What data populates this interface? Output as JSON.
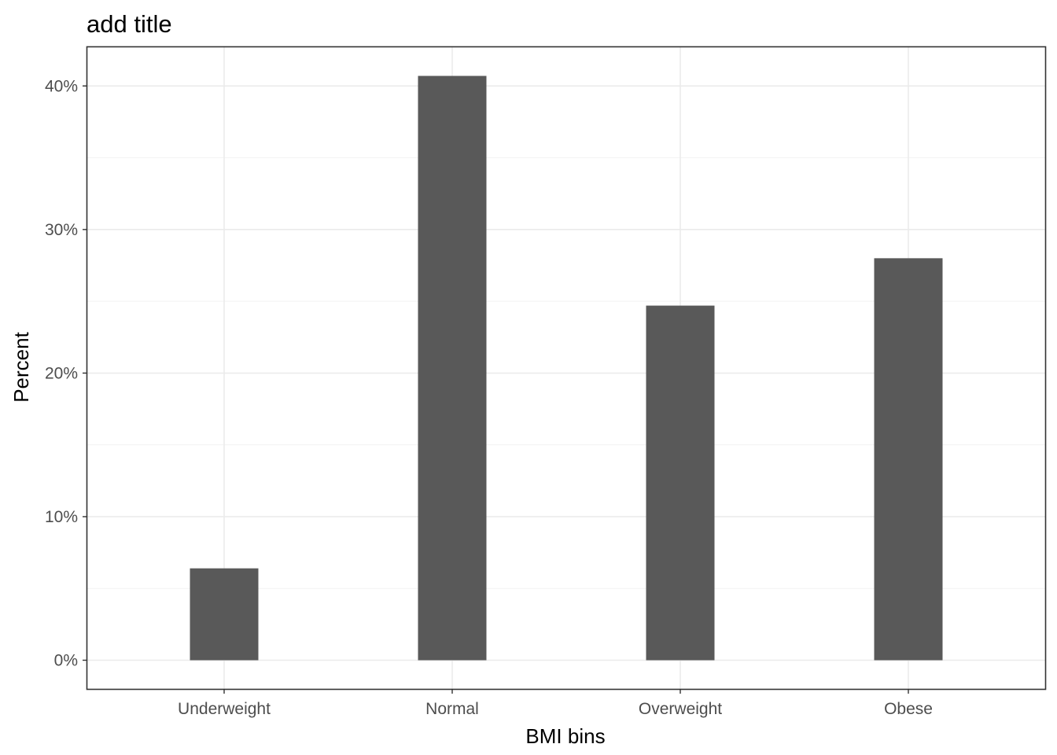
{
  "chart_data": {
    "type": "bar",
    "title": "add title",
    "xlabel": "BMI bins",
    "ylabel": "Percent",
    "categories": [
      "Underweight",
      "Normal",
      "Overweight",
      "Obese"
    ],
    "values": [
      6.4,
      40.7,
      24.7,
      28.0
    ],
    "value_format": "percent",
    "ylim": [
      -2.0,
      42.7
    ],
    "yticks": [
      0,
      10,
      20,
      30,
      40
    ],
    "ytick_labels": [
      "0%",
      "10%",
      "20%",
      "30%",
      "40%"
    ],
    "grid": true,
    "bar_color": "#595959",
    "legend": "none"
  }
}
